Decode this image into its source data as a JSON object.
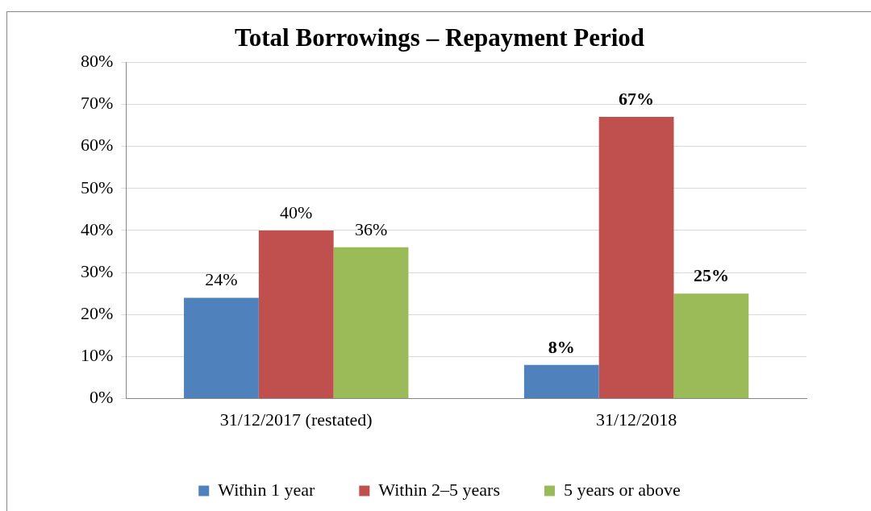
{
  "chart_data": {
    "type": "bar",
    "title": "Total Borrowings – Repayment Period",
    "categories": [
      "31/12/2017 (restated)",
      "31/12/2018"
    ],
    "series": [
      {
        "name": "Within 1 year",
        "color": "#4f81bd",
        "values": [
          24,
          8
        ],
        "value_labels": [
          "24%",
          "8%"
        ]
      },
      {
        "name": "Within 2–5 years",
        "color": "#c0504d",
        "values": [
          40,
          67
        ],
        "value_labels": [
          "40%",
          "67%"
        ]
      },
      {
        "name": "5 years or above",
        "color": "#9bbb59",
        "values": [
          36,
          25
        ],
        "value_labels": [
          "36%",
          "25%"
        ]
      }
    ],
    "ylim": [
      0,
      80
    ],
    "yticks": [
      {
        "value": 0,
        "label": "0%"
      },
      {
        "value": 10,
        "label": "10%"
      },
      {
        "value": 20,
        "label": "20%"
      },
      {
        "value": 30,
        "label": "30%"
      },
      {
        "value": 40,
        "label": "40%"
      },
      {
        "value": 50,
        "label": "50%"
      },
      {
        "value": 60,
        "label": "60%"
      },
      {
        "value": 70,
        "label": "70%"
      },
      {
        "value": 80,
        "label": "80%"
      }
    ],
    "grid": "y",
    "legend": "bottom"
  }
}
